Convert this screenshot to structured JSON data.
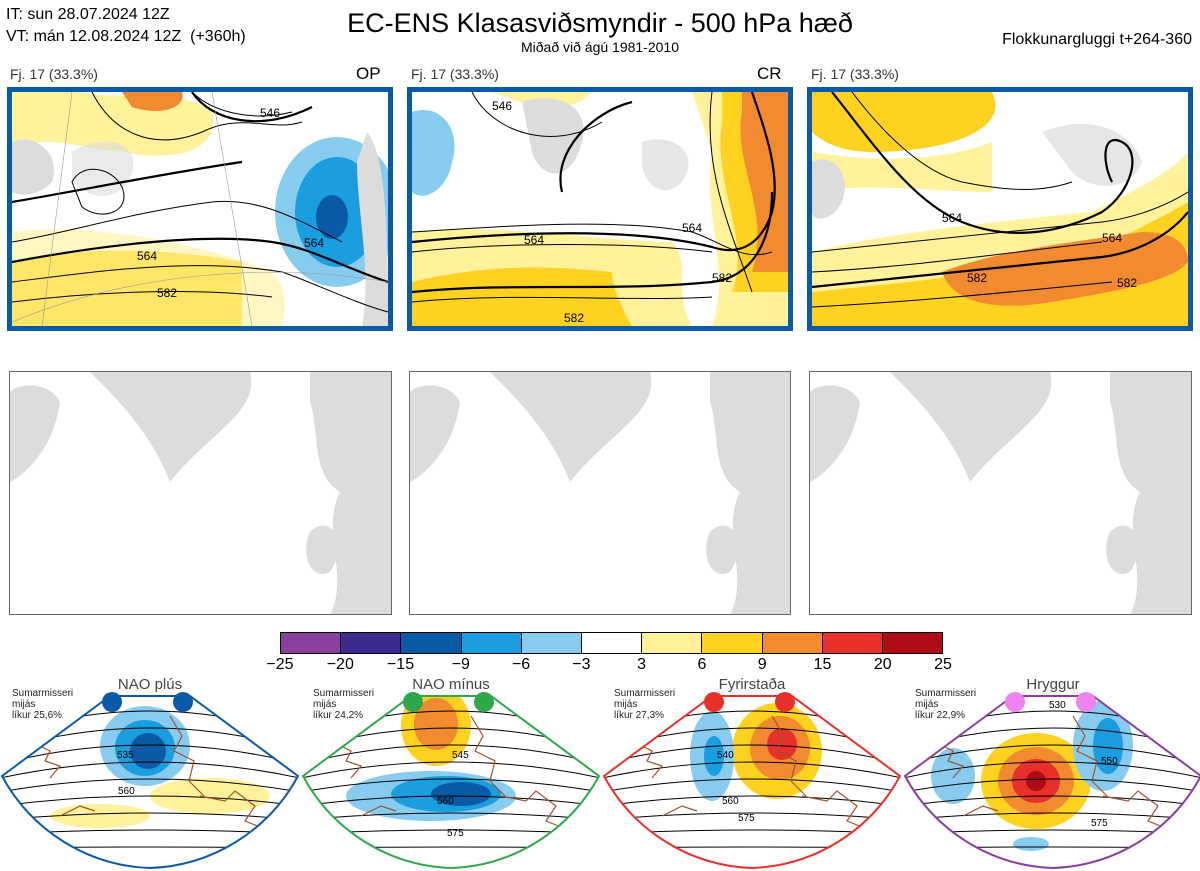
{
  "header": {
    "it": "IT: sun 28.07.2024 12Z",
    "vt": "VT: mán 12.08.2024 12Z  (+360h)",
    "title": "EC-ENS Klasasviðsmyndir - 500 hPa hæð",
    "subtitle": "Miðað við ágú 1981-2010",
    "window": "Flokkunargluggi t+264-360"
  },
  "panels": [
    {
      "label": "Fj. 17 (33.3%)",
      "tag": "OP",
      "contours": [
        "546",
        "564",
        "582",
        "564"
      ]
    },
    {
      "label": "Fj. 17 (33.3%)",
      "tag": "CR",
      "contours": [
        "546",
        "564",
        "564",
        "582",
        "582"
      ]
    },
    {
      "label": "Fj. 17 (33.3%)",
      "tag": "",
      "contours": [
        "564",
        "564",
        "582",
        "582"
      ]
    }
  ],
  "colorbar": {
    "colors": [
      "#8a3f9e",
      "#3c2a8e",
      "#0b5aa7",
      "#1b9ee0",
      "#87ccef",
      "#ffffff",
      "#fff29a",
      "#ffd21f",
      "#f28a30",
      "#e8302a",
      "#b00c16"
    ],
    "ticks": [
      "−25",
      "−20",
      "−15",
      "−9",
      "−6",
      "−3",
      "3",
      "6",
      "9",
      "15",
      "20",
      "25"
    ]
  },
  "regimes": [
    {
      "title": "NAO plús",
      "note": "Sumarmisseri\nmijás\nlíkur 25,6%",
      "border": "#0b5aa7",
      "dot": "#0b5aa7",
      "labels": [
        "535",
        "560"
      ]
    },
    {
      "title": "NAO mínus",
      "note": "Sumarmisseri\nmijás\nlíkur 24,2%",
      "border": "#2ea84a",
      "dot": "#2ea84a",
      "labels": [
        "545",
        "560",
        "575"
      ]
    },
    {
      "title": "Fyrirstaða",
      "note": "Sumarmisseri\nmijás\nlíkur 27,3%",
      "border": "#e8302a",
      "dot": "#e8302a",
      "labels": [
        "540",
        "560",
        "575"
      ]
    },
    {
      "title": "Hryggur",
      "note": "Sumarmisseri\nmijás\nlíkur 22,9%",
      "border": "#8a3f9e",
      "dot": "#ee82ee",
      "labels": [
        "530",
        "550",
        "575"
      ]
    }
  ]
}
